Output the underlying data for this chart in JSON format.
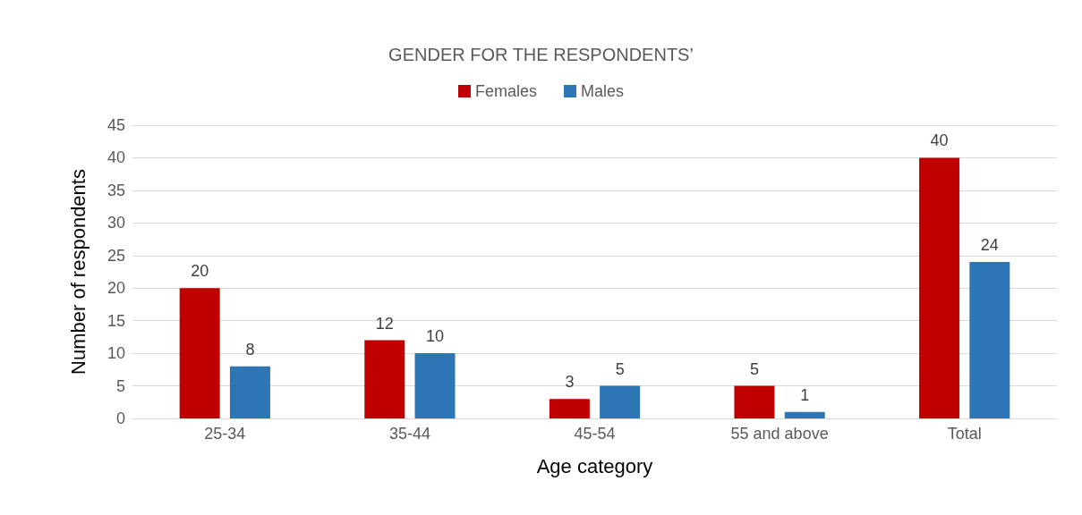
{
  "chart_data": {
    "type": "bar",
    "title": "GENDER FOR THE RESPONDENTS’",
    "xlabel": "Age category",
    "ylabel": "Number of respondents",
    "categories": [
      "25-34",
      "35-44",
      "45-54",
      "55 and above",
      "Total"
    ],
    "series": [
      {
        "name": "Females",
        "color": "#c00000",
        "values": [
          20,
          12,
          3,
          5,
          40
        ]
      },
      {
        "name": "Males",
        "color": "#2e75b6",
        "values": [
          8,
          10,
          5,
          1,
          24
        ]
      }
    ],
    "ylim": [
      0,
      45
    ],
    "yticks": [
      0,
      5,
      10,
      15,
      20,
      25,
      30,
      35,
      40,
      45
    ],
    "grid": "y",
    "legend": "top",
    "data_labels": true
  }
}
